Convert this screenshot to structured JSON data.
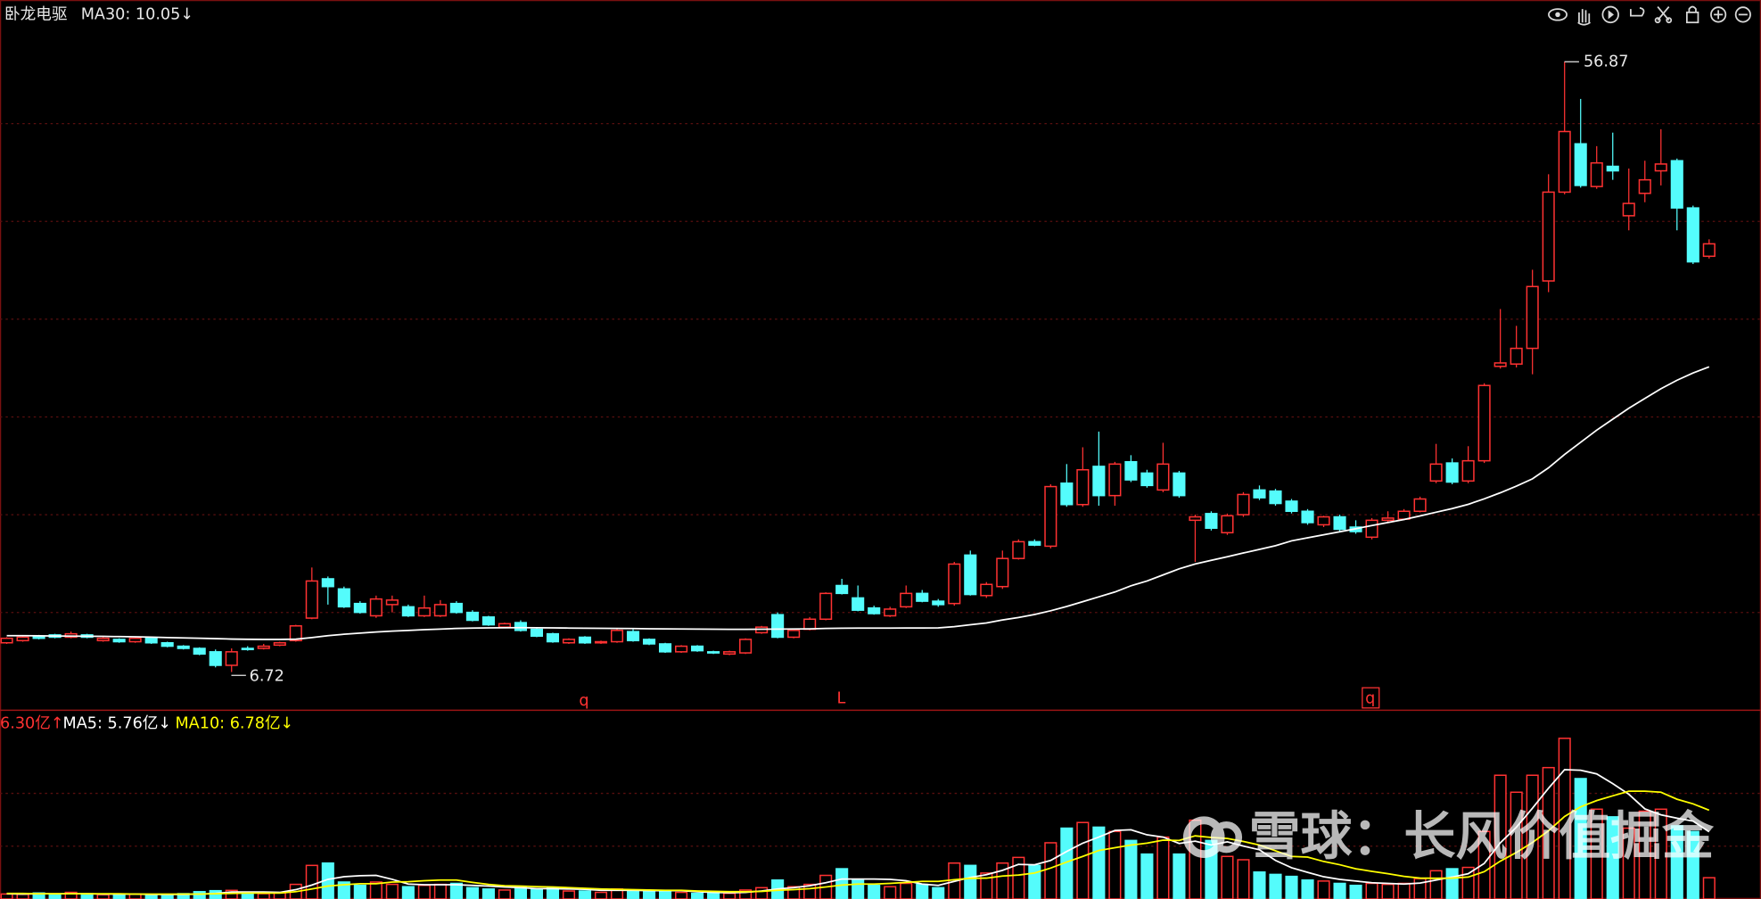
{
  "watermark": "雪球：长风价值掘金",
  "chart_data": [
    {
      "type": "candlestick",
      "title": "卧龙电驱",
      "up_color": "#ff3232",
      "down_color": "#54fcfc",
      "ylim": [
        3.58,
        61.95
      ],
      "annotations": [
        "56.87",
        "6.72"
      ],
      "markers": [
        "q",
        "L",
        "q"
      ],
      "values": [
        [
          9.12,
          9.58,
          9.03,
          9.49
        ],
        [
          9.3,
          9.67,
          9.21,
          9.58
        ],
        [
          9.67,
          9.77,
          9.4,
          9.49
        ],
        [
          9.77,
          9.86,
          9.49,
          9.58
        ],
        [
          9.58,
          10.04,
          9.49,
          9.86
        ],
        [
          9.77,
          9.86,
          9.49,
          9.58
        ],
        [
          9.3,
          9.58,
          9.21,
          9.49
        ],
        [
          9.4,
          9.49,
          9.12,
          9.21
        ],
        [
          9.21,
          9.58,
          9.12,
          9.49
        ],
        [
          9.49,
          9.58,
          9.03,
          9.12
        ],
        [
          9.12,
          9.21,
          8.75,
          8.84
        ],
        [
          8.84,
          8.93,
          8.57,
          8.66
        ],
        [
          8.66,
          8.75,
          8.1,
          8.2
        ],
        [
          8.38,
          8.57,
          7.1,
          7.27
        ],
        [
          7.27,
          8.66,
          6.72,
          8.38
        ],
        [
          8.66,
          8.84,
          8.47,
          8.57
        ],
        [
          8.66,
          9.03,
          8.57,
          8.84
        ],
        [
          8.93,
          9.21,
          8.84,
          9.12
        ],
        [
          9.3,
          10.6,
          9.21,
          10.51
        ],
        [
          11.15,
          15.31,
          11.06,
          14.2
        ],
        [
          14.38,
          14.57,
          12.26,
          13.74
        ],
        [
          13.55,
          13.74,
          11.98,
          12.08
        ],
        [
          12.35,
          12.54,
          11.52,
          11.62
        ],
        [
          11.34,
          13.0,
          11.17,
          12.72
        ],
        [
          12.26,
          13.0,
          11.62,
          12.63
        ],
        [
          12.08,
          12.26,
          11.24,
          11.34
        ],
        [
          11.34,
          13.0,
          11.24,
          11.98
        ],
        [
          11.34,
          12.63,
          11.24,
          12.26
        ],
        [
          12.35,
          12.54,
          11.52,
          11.62
        ],
        [
          11.62,
          11.8,
          10.88,
          10.97
        ],
        [
          11.24,
          11.34,
          10.51,
          10.6
        ],
        [
          10.41,
          10.78,
          10.32,
          10.69
        ],
        [
          10.78,
          10.97,
          10.04,
          10.14
        ],
        [
          10.23,
          10.32,
          9.58,
          9.67
        ],
        [
          9.86,
          9.95,
          9.12,
          9.21
        ],
        [
          9.12,
          9.49,
          9.03,
          9.4
        ],
        [
          9.58,
          9.67,
          9.03,
          9.12
        ],
        [
          9.12,
          9.3,
          9.03,
          9.21
        ],
        [
          9.21,
          10.32,
          9.12,
          10.14
        ],
        [
          10.04,
          10.23,
          9.21,
          9.3
        ],
        [
          9.4,
          9.49,
          8.93,
          9.03
        ],
        [
          9.03,
          9.12,
          8.29,
          8.38
        ],
        [
          8.38,
          8.93,
          8.29,
          8.84
        ],
        [
          8.84,
          8.93,
          8.38,
          8.47
        ],
        [
          8.38,
          8.47,
          8.2,
          8.29
        ],
        [
          8.2,
          8.47,
          8.1,
          8.38
        ],
        [
          8.29,
          9.49,
          8.2,
          9.4
        ],
        [
          9.95,
          10.51,
          9.86,
          10.41
        ],
        [
          11.43,
          11.62,
          9.49,
          9.58
        ],
        [
          9.58,
          10.23,
          9.49,
          10.14
        ],
        [
          10.23,
          11.24,
          10.14,
          11.06
        ],
        [
          11.06,
          13.27,
          10.97,
          13.18
        ],
        [
          13.83,
          14.38,
          13.09,
          13.18
        ],
        [
          12.81,
          13.83,
          11.71,
          11.8
        ],
        [
          11.98,
          12.17,
          11.43,
          11.52
        ],
        [
          11.34,
          12.08,
          11.24,
          11.89
        ],
        [
          12.08,
          13.83,
          11.98,
          13.18
        ],
        [
          13.18,
          13.46,
          12.45,
          12.54
        ],
        [
          12.54,
          12.72,
          12.08,
          12.26
        ],
        [
          12.35,
          15.77,
          12.17,
          15.59
        ],
        [
          16.33,
          16.7,
          13.0,
          13.09
        ],
        [
          13.0,
          14.11,
          12.81,
          13.92
        ],
        [
          13.74,
          16.7,
          13.55,
          16.05
        ],
        [
          16.05,
          17.62,
          15.96,
          17.43
        ],
        [
          17.43,
          17.62,
          17.06,
          17.15
        ],
        [
          17.06,
          22.15,
          16.88,
          21.96
        ],
        [
          22.24,
          23.81,
          20.3,
          20.48
        ],
        [
          20.48,
          25.19,
          20.3,
          23.34
        ],
        [
          23.62,
          26.48,
          20.39,
          21.22
        ],
        [
          21.22,
          23.99,
          20.39,
          23.81
        ],
        [
          24.0,
          24.54,
          22.33,
          22.51
        ],
        [
          23.07,
          23.34,
          21.87,
          22.05
        ],
        [
          21.68,
          25.56,
          21.5,
          23.81
        ],
        [
          23.07,
          23.25,
          21.04,
          21.22
        ],
        [
          19.19,
          19.65,
          15.77,
          19.47
        ],
        [
          19.74,
          19.93,
          18.35,
          18.54
        ],
        [
          18.17,
          19.74,
          17.99,
          19.56
        ],
        [
          19.65,
          21.5,
          19.47,
          21.31
        ],
        [
          21.68,
          22.05,
          20.85,
          21.04
        ],
        [
          21.59,
          21.77,
          20.39,
          20.57
        ],
        [
          20.76,
          20.94,
          19.75,
          19.93
        ],
        [
          19.93,
          20.11,
          18.82,
          19.0
        ],
        [
          18.82,
          19.56,
          18.63,
          19.47
        ],
        [
          19.47,
          19.65,
          18.26,
          18.45
        ],
        [
          18.63,
          19.19,
          18.08,
          18.26
        ],
        [
          17.8,
          19.37,
          17.62,
          19.19
        ],
        [
          19.19,
          19.93,
          19.0,
          19.37
        ],
        [
          19.28,
          20.11,
          19.19,
          19.93
        ],
        [
          19.93,
          21.13,
          19.84,
          20.94
        ],
        [
          22.42,
          25.47,
          22.24,
          23.81
        ],
        [
          23.9,
          24.27,
          22.15,
          22.33
        ],
        [
          22.42,
          25.28,
          22.24,
          24.08
        ],
        [
          24.08,
          30.45,
          23.9,
          30.27
        ],
        [
          31.84,
          36.55,
          31.66,
          32.12
        ],
        [
          32.03,
          35.17,
          31.75,
          33.32
        ],
        [
          33.32,
          39.78,
          31.19,
          38.4
        ],
        [
          38.86,
          47.63,
          37.94,
          46.16
        ],
        [
          46.16,
          56.87,
          45.98,
          51.14
        ],
        [
          50.13,
          53.82,
          46.53,
          46.71
        ],
        [
          46.62,
          49.94,
          46.43,
          48.56
        ],
        [
          48.28,
          51.05,
          47.17,
          47.91
        ],
        [
          44.22,
          48.1,
          43.02,
          45.23
        ],
        [
          46.06,
          48.74,
          45.33,
          47.17
        ],
        [
          47.91,
          51.33,
          46.71,
          48.47
        ],
        [
          48.74,
          48.92,
          43.02,
          44.86
        ],
        [
          44.86,
          45.05,
          40.25,
          40.43
        ],
        [
          40.89,
          42.28,
          40.7,
          41.91
        ]
      ],
      "series": [
        {
          "name": "MA30: 10.05↓",
          "color": "#ffffff",
          "values": [
            9.7,
            9.7,
            9.69,
            9.68,
            9.67,
            9.66,
            9.65,
            9.63,
            9.61,
            9.58,
            9.55,
            9.52,
            9.49,
            9.46,
            9.43,
            9.41,
            9.4,
            9.4,
            9.42,
            9.55,
            9.7,
            9.82,
            9.92,
            10.01,
            10.08,
            10.14,
            10.2,
            10.25,
            10.3,
            10.33,
            10.35,
            10.36,
            10.37,
            10.36,
            10.35,
            10.33,
            10.32,
            10.31,
            10.3,
            10.29,
            10.28,
            10.27,
            10.26,
            10.25,
            10.24,
            10.23,
            10.23,
            10.24,
            10.25,
            10.26,
            10.27,
            10.3,
            10.32,
            10.33,
            10.33,
            10.33,
            10.34,
            10.34,
            10.35,
            10.45,
            10.6,
            10.75,
            11.0,
            11.2,
            11.45,
            11.75,
            12.1,
            12.5,
            12.9,
            13.3,
            13.8,
            14.2,
            14.7,
            15.2,
            15.6,
            15.9,
            16.2,
            16.5,
            16.8,
            17.1,
            17.5,
            17.75,
            18.0,
            18.25,
            18.5,
            18.75,
            19.0,
            19.25,
            19.55,
            19.85,
            20.15,
            20.5,
            20.95,
            21.45,
            22.0,
            22.6,
            23.5,
            24.6,
            25.6,
            26.6,
            27.5,
            28.4,
            29.2,
            30.0,
            30.7,
            31.3,
            31.8
          ]
        }
      ]
    },
    {
      "type": "volume",
      "label": "6.30亿↑",
      "label_color": "#ff3232",
      "ylim": [
        0,
        50
      ],
      "values": [
        1.5,
        1.4,
        1.8,
        1.5,
        2.0,
        1.6,
        1.3,
        1.2,
        1.5,
        1.3,
        1.4,
        1.6,
        2.2,
        2.5,
        2.6,
        1.5,
        1.6,
        1.9,
        4.4,
        10.1,
        10.8,
        5.1,
        4.1,
        5.1,
        4.4,
        3.7,
        4.1,
        4.4,
        4.7,
        3.4,
        3.0,
        2.7,
        3.4,
        3.0,
        3.4,
        2.4,
        2.4,
        2.0,
        3.0,
        2.7,
        2.4,
        2.4,
        2.0,
        1.7,
        1.7,
        1.7,
        2.7,
        3.4,
        5.7,
        3.7,
        4.4,
        7.1,
        9.1,
        5.7,
        4.1,
        3.7,
        4.7,
        4.4,
        3.4,
        10.8,
        10.1,
        7.8,
        10.8,
        12.5,
        10.1,
        16.9,
        21.3,
        23.0,
        21.6,
        20.3,
        17.6,
        13.5,
        18.6,
        13.5,
        23.7,
        17.6,
        12.8,
        11.8,
        8.1,
        7.4,
        6.8,
        5.7,
        5.4,
        4.7,
        4.1,
        4.7,
        4.4,
        4.7,
        6.1,
        8.5,
        9.1,
        9.5,
        20.3,
        37.2,
        32.1,
        37.2,
        39.5,
        48.3,
        36.2,
        27.0,
        24.7,
        21.3,
        26.4,
        27.0,
        22.0,
        20.3,
        6.4
      ],
      "series": [
        {
          "name": "MA5: 5.76亿↓",
          "color": "#ffffff",
          "values": [
            1.6,
            1.5,
            1.6,
            1.6,
            1.6,
            1.6,
            1.5,
            1.5,
            1.5,
            1.4,
            1.4,
            1.4,
            1.5,
            1.7,
            2.1,
            2.1,
            2.1,
            2.0,
            2.8,
            4.2,
            5.9,
            6.7,
            7.0,
            7.1,
            5.9,
            4.5,
            4.3,
            4.3,
            4.3,
            4.1,
            3.9,
            3.6,
            3.4,
            3.1,
            3.1,
            3.0,
            2.9,
            2.6,
            2.6,
            2.6,
            2.5,
            2.5,
            2.5,
            2.2,
            2.0,
            1.9,
            2.0,
            2.4,
            3.0,
            3.4,
            4.0,
            4.9,
            6.0,
            6.0,
            6.0,
            5.9,
            5.5,
            4.5,
            4.1,
            5.3,
            6.5,
            7.3,
            8.6,
            10.4,
            10.3,
            11.6,
            14.3,
            16.8,
            18.6,
            20.6,
            20.8,
            19.3,
            18.6,
            16.7,
            17.4,
            16.2,
            17.2,
            15.9,
            14.8,
            11.6,
            9.4,
            8.0,
            6.7,
            5.9,
            5.4,
            4.9,
            4.7,
            4.5,
            4.8,
            5.7,
            6.6,
            7.6,
            10.7,
            16.9,
            21.6,
            27.3,
            33.3,
            38.9,
            38.7,
            37.6,
            34.7,
            31.5,
            27.1,
            25.3,
            24.3,
            23.4,
            20.2
          ]
        },
        {
          "name": "MA10: 6.78亿↓",
          "color": "#ffff00",
          "values": [
            1.7,
            1.7,
            1.6,
            1.6,
            1.6,
            1.6,
            1.6,
            1.6,
            1.5,
            1.5,
            1.5,
            1.5,
            1.5,
            1.6,
            1.7,
            1.8,
            1.8,
            1.8,
            2.2,
            3.0,
            3.9,
            4.3,
            4.6,
            4.6,
            5.1,
            5.2,
            5.5,
            5.7,
            5.7,
            5.0,
            4.4,
            4.0,
            3.9,
            3.7,
            3.6,
            3.4,
            3.2,
            3.0,
            2.9,
            2.8,
            2.7,
            2.6,
            2.6,
            2.4,
            2.3,
            2.2,
            2.2,
            2.3,
            2.6,
            2.8,
            3.1,
            3.6,
            4.2,
            4.5,
            4.5,
            4.7,
            5.0,
            5.3,
            5.3,
            5.8,
            6.2,
            6.3,
            6.9,
            7.2,
            7.8,
            9.3,
            11.1,
            12.8,
            14.6,
            15.4,
            16.2,
            16.8,
            17.7,
            17.6,
            19.0,
            18.5,
            18.2,
            17.3,
            16.2,
            14.5,
            12.8,
            12.6,
            11.3,
            10.3,
            9.1,
            8.3,
            7.6,
            6.8,
            6.3,
            6.2,
            6.3,
            6.6,
            8.2,
            11.4,
            14.0,
            17.0,
            20.5,
            24.8,
            27.7,
            29.6,
            31.0,
            32.4,
            32.4,
            32.1,
            30.0,
            28.6,
            26.7
          ]
        }
      ]
    }
  ]
}
